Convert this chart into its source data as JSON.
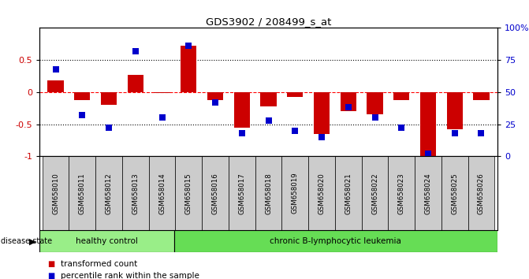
{
  "title": "GDS3902 / 208499_s_at",
  "samples": [
    "GSM658010",
    "GSM658011",
    "GSM658012",
    "GSM658013",
    "GSM658014",
    "GSM658015",
    "GSM658016",
    "GSM658017",
    "GSM658018",
    "GSM658019",
    "GSM658020",
    "GSM658021",
    "GSM658022",
    "GSM658023",
    "GSM658024",
    "GSM658025",
    "GSM658026"
  ],
  "bar_values": [
    0.18,
    -0.13,
    -0.2,
    0.27,
    -0.02,
    0.72,
    -0.13,
    -0.55,
    -0.22,
    -0.08,
    -0.65,
    -0.3,
    -0.35,
    -0.12,
    -1.02,
    -0.58,
    -0.12
  ],
  "dot_values": [
    68,
    32,
    22,
    82,
    30,
    86,
    42,
    18,
    28,
    20,
    15,
    38,
    30,
    22,
    2,
    18,
    18
  ],
  "bar_color": "#CC0000",
  "dot_color": "#0000CC",
  "healthy_count": 5,
  "healthy_label": "healthy control",
  "leukemia_label": "chronic B-lymphocytic leukemia",
  "healthy_color": "#99EE88",
  "leukemia_color": "#66DD55",
  "disease_state_label": "disease state",
  "legend_bar": "transformed count",
  "legend_dot": "percentile rank within the sample",
  "ylim_left": [
    -1,
    1
  ],
  "ylim_right": [
    0,
    100
  ],
  "yticks_left": [
    -1,
    -0.5,
    0,
    0.5
  ],
  "ytick_labels_left": [
    "-1",
    "-0.5",
    "0",
    "0.5"
  ],
  "yticks_right": [
    0,
    25,
    50,
    75,
    100
  ],
  "ytick_labels_right": [
    "0",
    "25",
    "50",
    "75",
    "100%"
  ],
  "label_bg_color": "#cccccc",
  "background_color": "#ffffff"
}
